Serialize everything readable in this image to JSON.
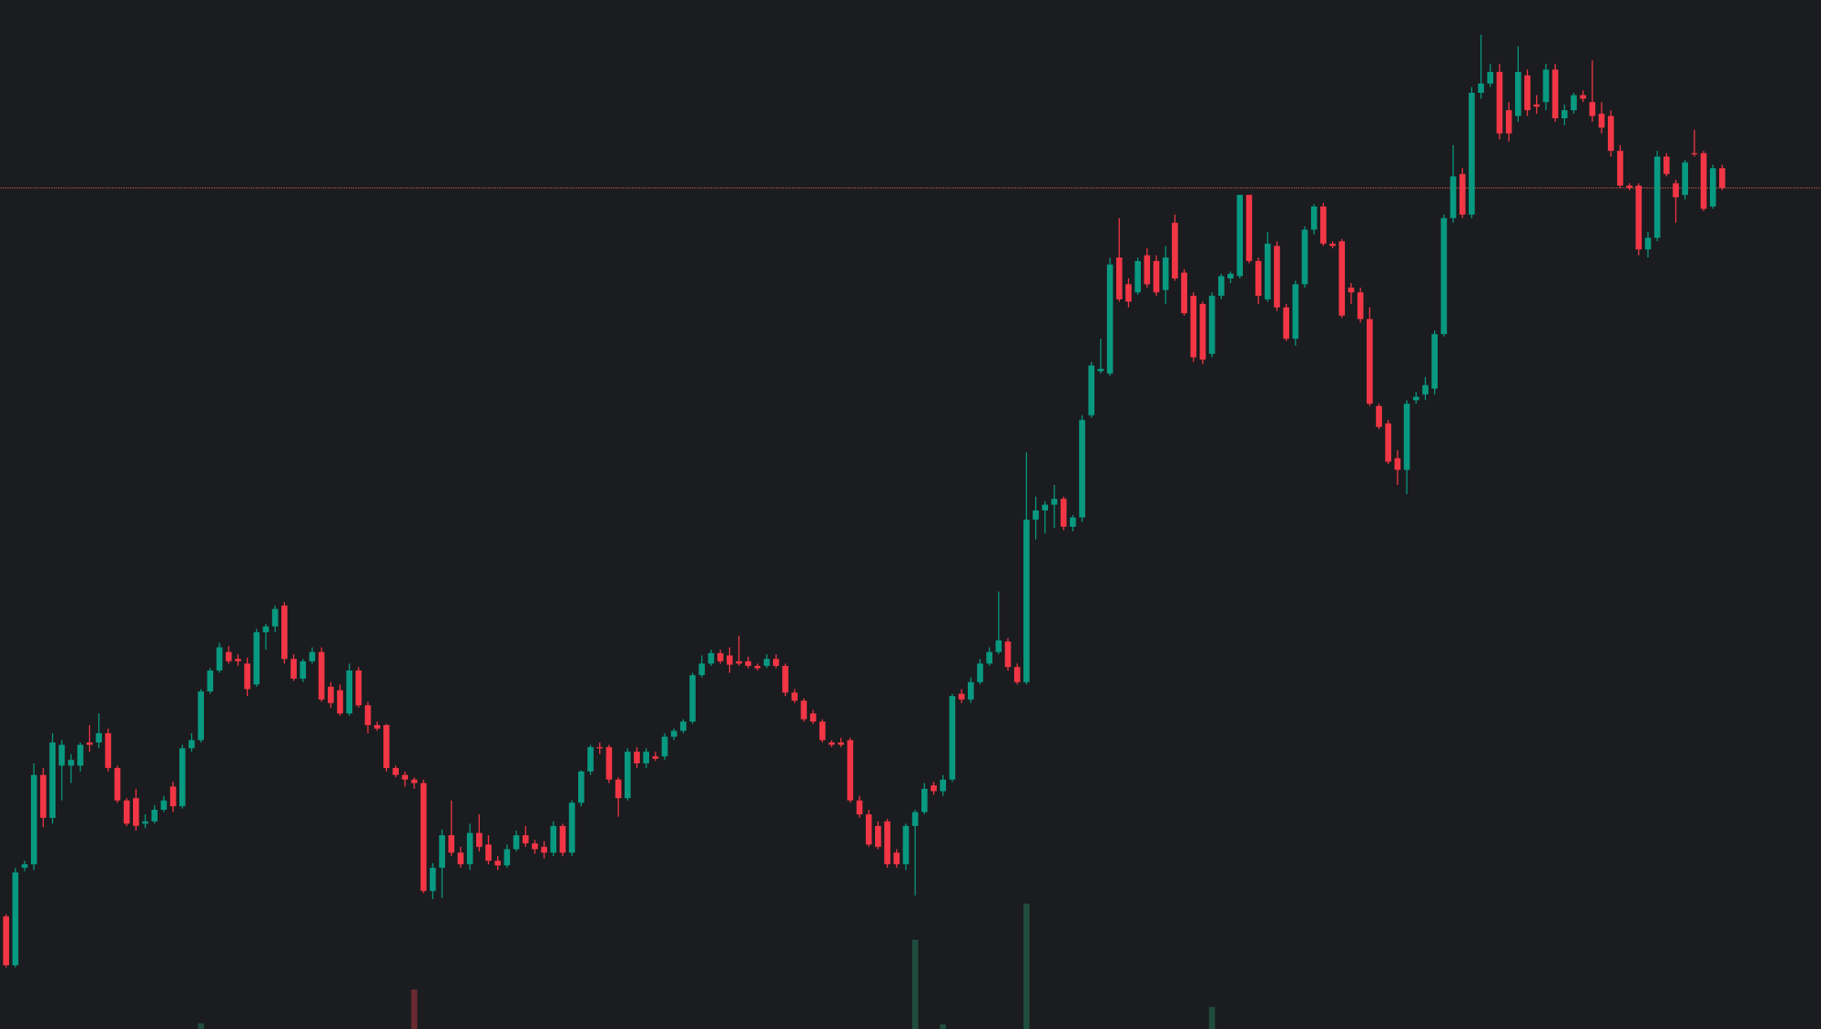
{
  "chart_data": {
    "type": "candlestick",
    "up_color": "#089981",
    "down_color": "#f23645",
    "volume_up_color": "#1f4d3e",
    "volume_down_color": "#6a2b30",
    "price_line_color": "#c0574a",
    "background": "#1b1c1f",
    "ylim": [
      113,
      1000
    ],
    "vlim": [
      0,
      887
    ],
    "price_line": 838,
    "candles": [
      [
        210,
        212,
        166,
        168
      ],
      [
        168,
        252,
        166,
        248
      ],
      [
        252,
        258,
        249,
        255
      ],
      [
        255,
        342,
        250,
        332
      ],
      [
        332,
        338,
        287,
        295
      ],
      [
        295,
        368,
        290,
        360
      ],
      [
        340,
        362,
        310,
        358
      ],
      [
        340,
        350,
        325,
        345
      ],
      [
        340,
        360,
        335,
        358
      ],
      [
        360,
        375,
        352,
        358
      ],
      [
        360,
        385,
        355,
        368
      ],
      [
        368,
        372,
        335,
        338
      ],
      [
        338,
        340,
        308,
        310
      ],
      [
        310,
        312,
        288,
        290
      ],
      [
        312,
        320,
        284,
        288
      ],
      [
        290,
        298,
        286,
        292
      ],
      [
        292,
        306,
        290,
        302
      ],
      [
        302,
        314,
        300,
        310
      ],
      [
        322,
        326,
        300,
        305
      ],
      [
        305,
        358,
        303,
        355
      ],
      [
        355,
        368,
        352,
        362
      ],
      [
        362,
        406,
        360,
        404
      ],
      [
        404,
        424,
        402,
        422
      ],
      [
        422,
        446,
        420,
        442
      ],
      [
        438,
        443,
        428,
        430
      ],
      [
        432,
        436,
        426,
        430
      ],
      [
        428,
        433,
        400,
        406
      ],
      [
        410,
        458,
        408,
        455
      ],
      [
        455,
        462,
        440,
        460
      ],
      [
        460,
        478,
        455,
        475
      ],
      [
        478,
        481,
        428,
        432
      ],
      [
        432,
        436,
        413,
        415
      ],
      [
        415,
        432,
        412,
        430
      ],
      [
        430,
        442,
        428,
        438
      ],
      [
        438,
        442,
        395,
        397
      ],
      [
        408,
        412,
        390,
        394
      ],
      [
        405,
        410,
        383,
        385
      ],
      [
        385,
        428,
        383,
        422
      ],
      [
        422,
        425,
        390,
        392
      ],
      [
        392,
        395,
        368,
        375
      ],
      [
        375,
        378,
        370,
        372
      ],
      [
        375,
        376,
        335,
        338
      ],
      [
        338,
        340,
        330,
        332
      ],
      [
        332,
        335,
        322,
        328
      ],
      [
        328,
        330,
        320,
        325
      ],
      [
        325,
        328,
        230,
        232
      ],
      [
        232,
        256,
        225,
        252
      ],
      [
        252,
        285,
        226,
        280
      ],
      [
        280,
        310,
        262,
        265
      ],
      [
        265,
        270,
        252,
        255
      ],
      [
        255,
        290,
        250,
        282
      ],
      [
        282,
        298,
        266,
        270
      ],
      [
        272,
        280,
        255,
        258
      ],
      [
        258,
        262,
        250,
        254
      ],
      [
        254,
        272,
        252,
        268
      ],
      [
        268,
        284,
        266,
        280
      ],
      [
        280,
        288,
        270,
        273
      ],
      [
        273,
        276,
        264,
        268
      ],
      [
        270,
        275,
        260,
        265
      ],
      [
        265,
        292,
        262,
        288
      ],
      [
        288,
        290,
        262,
        265
      ],
      [
        265,
        310,
        262,
        308
      ],
      [
        308,
        336,
        305,
        335
      ],
      [
        335,
        358,
        332,
        356
      ],
      [
        356,
        360,
        350,
        355
      ],
      [
        356,
        358,
        325,
        328
      ],
      [
        328,
        330,
        296,
        312
      ],
      [
        312,
        355,
        310,
        352
      ],
      [
        352,
        356,
        338,
        342
      ],
      [
        342,
        355,
        338,
        352
      ],
      [
        348,
        352,
        344,
        346
      ],
      [
        348,
        368,
        345,
        365
      ],
      [
        365,
        372,
        362,
        370
      ],
      [
        370,
        380,
        368,
        378
      ],
      [
        378,
        420,
        376,
        418
      ],
      [
        418,
        435,
        416,
        428
      ],
      [
        428,
        440,
        426,
        437
      ],
      [
        437,
        440,
        428,
        430
      ],
      [
        435,
        442,
        420,
        427
      ],
      [
        430,
        452,
        426,
        428
      ],
      [
        430,
        434,
        424,
        426
      ],
      [
        426,
        428,
        422,
        424
      ],
      [
        426,
        436,
        424,
        432
      ],
      [
        432,
        436,
        424,
        426
      ],
      [
        426,
        428,
        400,
        403
      ],
      [
        403,
        406,
        394,
        396
      ],
      [
        396,
        398,
        378,
        380
      ],
      [
        385,
        388,
        376,
        378
      ],
      [
        378,
        380,
        360,
        362
      ],
      [
        360,
        362,
        356,
        358
      ],
      [
        360,
        364,
        356,
        358
      ],
      [
        362,
        364,
        308,
        310
      ],
      [
        310,
        314,
        295,
        298
      ],
      [
        298,
        302,
        270,
        272
      ],
      [
        288,
        292,
        268,
        270
      ],
      [
        292,
        294,
        252,
        255
      ],
      [
        265,
        268,
        252,
        255
      ],
      [
        255,
        290,
        250,
        288
      ],
      [
        288,
        302,
        228,
        300
      ],
      [
        300,
        325,
        298,
        320
      ],
      [
        323,
        326,
        315,
        318
      ],
      [
        318,
        332,
        314,
        328
      ],
      [
        328,
        402,
        326,
        400
      ],
      [
        402,
        406,
        394,
        397
      ],
      [
        397,
        416,
        394,
        412
      ],
      [
        412,
        432,
        410,
        428
      ],
      [
        428,
        442,
        426,
        438
      ],
      [
        438,
        490,
        436,
        448
      ],
      [
        447,
        450,
        422,
        425
      ],
      [
        425,
        428,
        410,
        412
      ],
      [
        412,
        610,
        410,
        552
      ],
      [
        552,
        572,
        535,
        560
      ],
      [
        560,
        568,
        540,
        565
      ],
      [
        565,
        582,
        545,
        570
      ],
      [
        570,
        572,
        543,
        546
      ],
      [
        546,
        556,
        542,
        554
      ],
      [
        554,
        642,
        550,
        638
      ],
      [
        642,
        688,
        640,
        685
      ],
      [
        680,
        708,
        678,
        682
      ],
      [
        678,
        778,
        676,
        772
      ],
      [
        778,
        812,
        740,
        742
      ],
      [
        755,
        760,
        735,
        740
      ],
      [
        748,
        778,
        746,
        775
      ],
      [
        780,
        786,
        752,
        755
      ],
      [
        775,
        780,
        745,
        748
      ],
      [
        750,
        788,
        738,
        778
      ],
      [
        808,
        815,
        758,
        760
      ],
      [
        765,
        768,
        728,
        730
      ],
      [
        745,
        748,
        688,
        692
      ],
      [
        738,
        740,
        686,
        690
      ],
      [
        695,
        748,
        692,
        745
      ],
      [
        745,
        764,
        742,
        762
      ],
      [
        760,
        766,
        756,
        764
      ],
      [
        762,
        832,
        760,
        832
      ],
      [
        832,
        832,
        773,
        775
      ],
      [
        775,
        778,
        738,
        745
      ],
      [
        742,
        800,
        740,
        790
      ],
      [
        788,
        792,
        732,
        735
      ],
      [
        735,
        738,
        706,
        708
      ],
      [
        708,
        758,
        702,
        755
      ],
      [
        755,
        805,
        752,
        802
      ],
      [
        802,
        824,
        798,
        822
      ],
      [
        822,
        825,
        788,
        790
      ],
      [
        790,
        792,
        786,
        788
      ],
      [
        792,
        794,
        726,
        728
      ],
      [
        752,
        756,
        738,
        748
      ],
      [
        748,
        752,
        722,
        725
      ],
      [
        725,
        735,
        650,
        652
      ],
      [
        650,
        652,
        630,
        632
      ],
      [
        635,
        638,
        600,
        602
      ],
      [
        605,
        612,
        582,
        595
      ],
      [
        595,
        655,
        574,
        652
      ],
      [
        655,
        662,
        652,
        658
      ],
      [
        660,
        675,
        655,
        668
      ],
      [
        665,
        715,
        660,
        712
      ],
      [
        712,
        815,
        710,
        812
      ],
      [
        812,
        875,
        808,
        848
      ],
      [
        850,
        855,
        812,
        815
      ],
      [
        815,
        925,
        812,
        920
      ],
      [
        920,
        970,
        915,
        928
      ],
      [
        928,
        945,
        925,
        938
      ],
      [
        938,
        945,
        880,
        885
      ],
      [
        905,
        912,
        878,
        885
      ],
      [
        900,
        960,
        895,
        938
      ],
      [
        935,
        940,
        900,
        905
      ],
      [
        910,
        918,
        902,
        908
      ],
      [
        912,
        945,
        905,
        940
      ],
      [
        940,
        945,
        895,
        898
      ],
      [
        898,
        910,
        892,
        905
      ],
      [
        905,
        920,
        902,
        918
      ],
      [
        918,
        922,
        912,
        915
      ],
      [
        912,
        948,
        895,
        900
      ],
      [
        902,
        912,
        885,
        890
      ],
      [
        900,
        905,
        865,
        870
      ],
      [
        870,
        875,
        838,
        840
      ],
      [
        840,
        842,
        836,
        838
      ],
      [
        840,
        842,
        780,
        785
      ],
      [
        785,
        800,
        778,
        795
      ],
      [
        795,
        870,
        792,
        865
      ],
      [
        865,
        868,
        848,
        850
      ],
      [
        842,
        845,
        808,
        830
      ],
      [
        832,
        862,
        828,
        860
      ],
      [
        868,
        888,
        865,
        867
      ],
      [
        868,
        870,
        818,
        820
      ],
      [
        822,
        858,
        820,
        855
      ],
      [
        855,
        858,
        836,
        838
      ]
    ],
    "volume": [
      null,
      null,
      null,
      null,
      null,
      null,
      null,
      null,
      null,
      null,
      null,
      null,
      null,
      null,
      null,
      null,
      null,
      null,
      null,
      null,
      null,
      5,
      null,
      null,
      null,
      null,
      null,
      null,
      null,
      null,
      null,
      null,
      null,
      null,
      null,
      null,
      null,
      null,
      null,
      null,
      null,
      null,
      null,
      null,
      34,
      null,
      null,
      null,
      null,
      null,
      null,
      null,
      null,
      null,
      null,
      null,
      null,
      null,
      null,
      null,
      null,
      null,
      null,
      null,
      null,
      null,
      null,
      null,
      null,
      null,
      null,
      null,
      null,
      null,
      null,
      null,
      null,
      null,
      null,
      null,
      null,
      null,
      null,
      null,
      null,
      null,
      null,
      null,
      null,
      null,
      null,
      null,
      null,
      null,
      null,
      null,
      null,
      null,
      77,
      null,
      null,
      4,
      null,
      null,
      null,
      null,
      null,
      null,
      null,
      null,
      108,
      null,
      null,
      null,
      null,
      null,
      null,
      null,
      null,
      null,
      null,
      null,
      null,
      null,
      null,
      null,
      null,
      null,
      null,
      null,
      19,
      null,
      null,
      null,
      null,
      null,
      null,
      null,
      null,
      null,
      null,
      null,
      null,
      null,
      null,
      null,
      null,
      null,
      null,
      null,
      null,
      null,
      null,
      null,
      null,
      null,
      null,
      null,
      null,
      null,
      null,
      null,
      null,
      null,
      null,
      null,
      null,
      null,
      null,
      null,
      null,
      null,
      null,
      null,
      null,
      null,
      null,
      null,
      null,
      null,
      null,
      null,
      null,
      null,
      null,
      null
    ]
  }
}
